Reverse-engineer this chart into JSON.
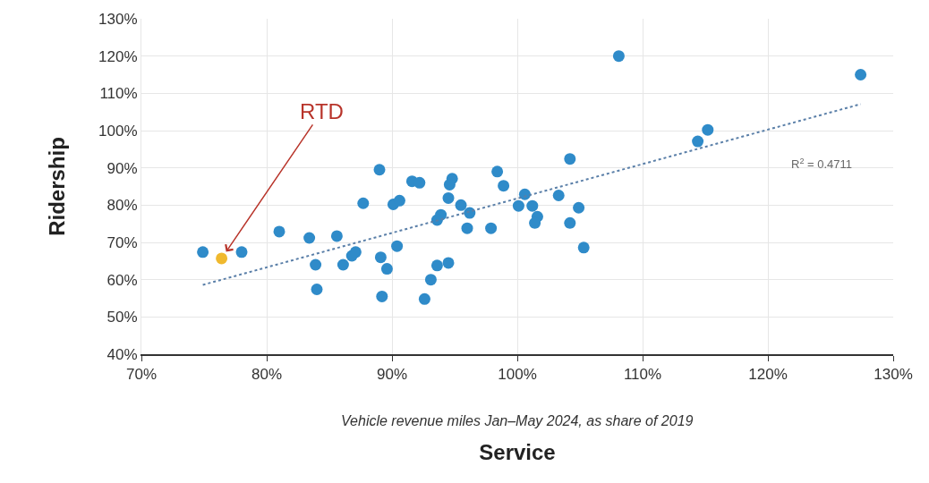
{
  "chart_data": {
    "type": "scatter",
    "xlabel": "Service",
    "ylabel": "Ridership",
    "series": [
      {
        "color": "#2f8bc9",
        "x": [
          74.9,
          78.0,
          81.0,
          83.4,
          83.9,
          84.0,
          85.6,
          86.1,
          86.8,
          87.1,
          87.7,
          89.0,
          89.1,
          89.2,
          89.6,
          90.1,
          90.4,
          90.6,
          91.6,
          92.2,
          94.8,
          94.6,
          94.5,
          95.5,
          96.2,
          93.9,
          93.6,
          96.0,
          97.9,
          98.4,
          98.9,
          100.6,
          100.1,
          101.2,
          101.6,
          101.4,
          103.3,
          104.2,
          104.9,
          104.2,
          105.3,
          94.5,
          93.6,
          93.1,
          92.6,
          108.1,
          127.4,
          115.2,
          114.4
        ],
        "values": [
          67.4,
          67.4,
          72.9,
          71.2,
          64.0,
          57.4,
          71.7,
          64.0,
          66.4,
          67.4,
          80.5,
          89.5,
          66.0,
          55.5,
          62.9,
          80.2,
          69.0,
          81.2,
          86.4,
          86.0,
          87.1,
          85.5,
          81.9,
          80.0,
          77.9,
          77.4,
          76.0,
          73.8,
          73.8,
          89.0,
          85.2,
          82.9,
          79.8,
          79.8,
          76.9,
          75.2,
          82.6,
          75.2,
          79.3,
          92.4,
          68.6,
          64.5,
          63.8,
          60.0,
          54.8,
          120.0,
          115.0,
          100.2,
          97.1
        ]
      },
      {
        "color": "#f0b92e",
        "x": [
          76.4
        ],
        "values": [
          65.7
        ]
      },
      {
        "type": "line",
        "color": "#5a7fa8",
        "line_style": "dotted",
        "marker": "none",
        "x": [
          74.9,
          127.4
        ],
        "values": [
          58.6,
          107.1
        ]
      }
    ],
    "marker": "circle",
    "xlim": [
      70,
      130
    ],
    "xticks": [
      {
        "value": 70,
        "label": "70%"
      },
      {
        "value": 80,
        "label": "80%"
      },
      {
        "value": 90,
        "label": "90%"
      },
      {
        "value": 100,
        "label": "100%"
      },
      {
        "value": 110,
        "label": "110%"
      },
      {
        "value": 120,
        "label": "120%"
      },
      {
        "value": 130,
        "label": "130%"
      }
    ],
    "ylim": [
      40,
      130
    ],
    "yticks": [
      {
        "value": 40,
        "label": "40%"
      },
      {
        "value": 50,
        "label": "50%"
      },
      {
        "value": 60,
        "label": "60%"
      },
      {
        "value": 70,
        "label": "70%"
      },
      {
        "value": 80,
        "label": "80%"
      },
      {
        "value": 90,
        "label": "90%"
      },
      {
        "value": 100,
        "label": "100%"
      },
      {
        "value": 110,
        "label": "110%"
      },
      {
        "value": 120,
        "label": "120%"
      },
      {
        "value": 130,
        "label": "130%"
      }
    ],
    "grid": true,
    "annotations": [
      {
        "text": "RTD",
        "x": 76.4,
        "y": 65.7
      },
      "Vehicle revenue miles Jan–May 2024, as share of 2019",
      "R$^{2}$ = 0.4711"
    ]
  }
}
